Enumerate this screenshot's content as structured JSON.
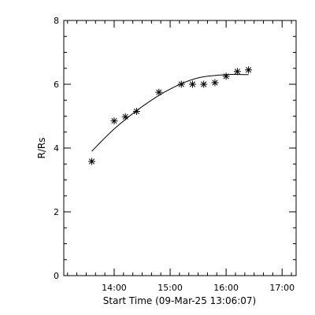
{
  "chart_data": {
    "type": "scatter",
    "xlabel": "Start Time (09-Mar-25 13:06:07)",
    "ylabel": "R/Rs",
    "xlim": [
      "13:06",
      "17:15"
    ],
    "ylim": [
      0,
      8
    ],
    "x_ticks": [
      "14:00",
      "15:00",
      "16:00",
      "17:00"
    ],
    "y_ticks": [
      "0",
      "2",
      "4",
      "6",
      "8"
    ],
    "grid": false,
    "legend": "none",
    "series": [
      {
        "marker": "asterisk",
        "x": [
          "13:36",
          "14:00",
          "14:12",
          "14:24",
          "14:48",
          "15:12",
          "15:24",
          "15:36",
          "15:48",
          "16:00",
          "16:12",
          "16:24"
        ],
        "y": [
          3.58,
          4.85,
          4.98,
          5.15,
          5.75,
          6.0,
          6.0,
          6.0,
          6.05,
          6.25,
          6.4,
          6.45
        ]
      },
      {
        "marker": "line",
        "x": [
          "13:36",
          "14:00",
          "14:30",
          "15:00",
          "15:30",
          "16:00",
          "16:24"
        ],
        "y": [
          3.9,
          4.6,
          5.3,
          5.85,
          6.2,
          6.3,
          6.3
        ]
      }
    ],
    "colors": {
      "line": "#000000",
      "markers": "#000000",
      "background": "#ffffff"
    }
  }
}
